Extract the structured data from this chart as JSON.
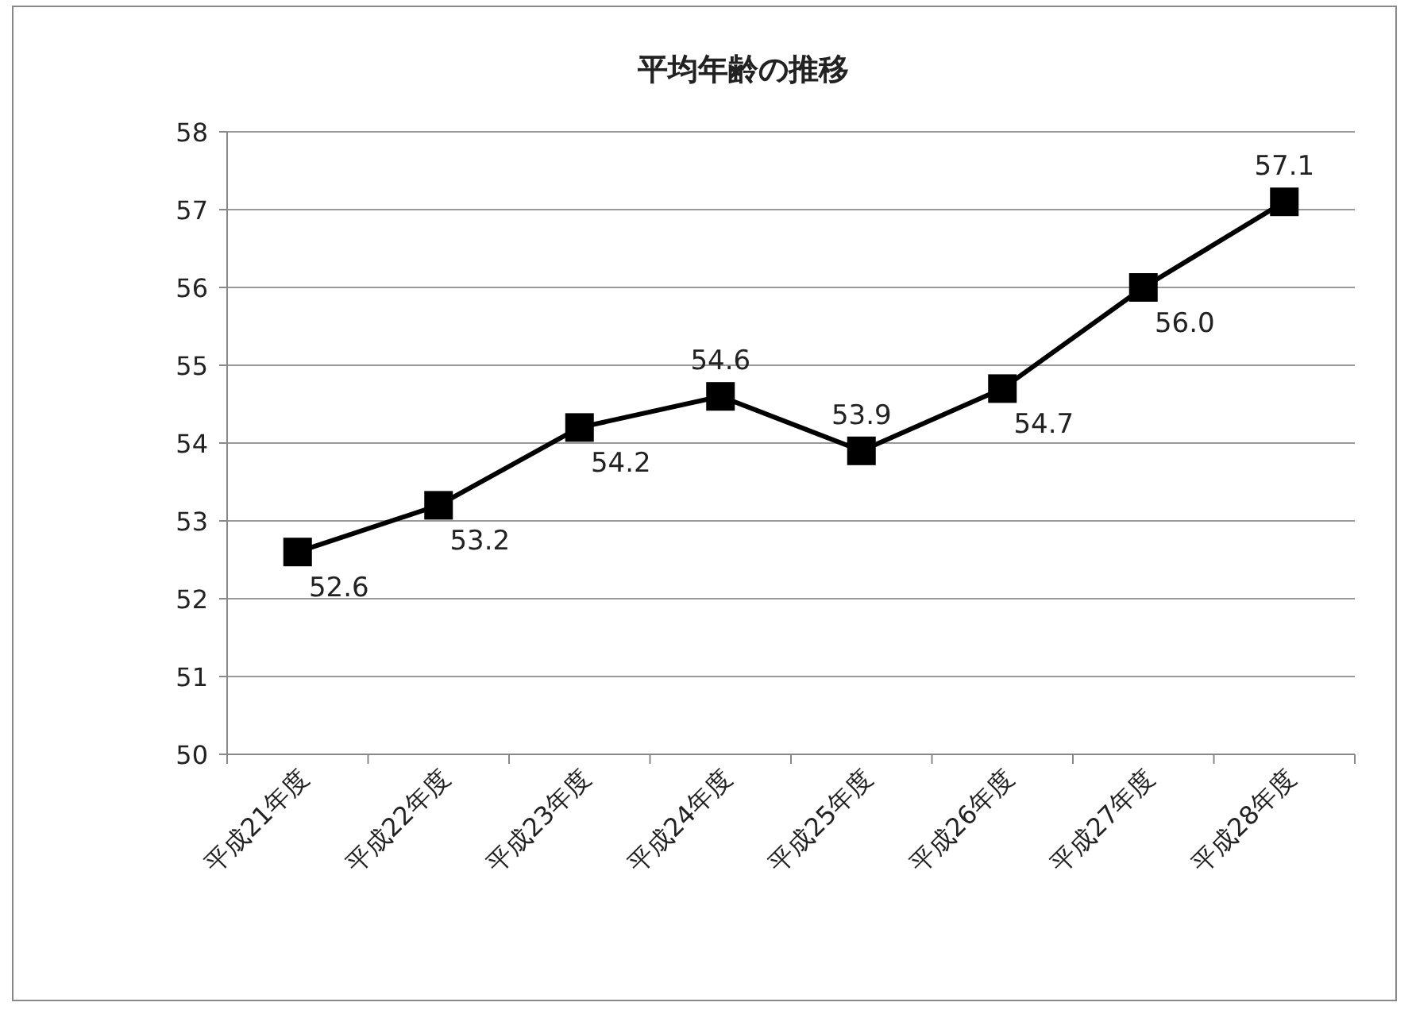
{
  "chart_data": {
    "type": "line",
    "title": "平均年齢の推移",
    "categories": [
      "平成21年度",
      "平成22年度",
      "平成23年度",
      "平成24年度",
      "平成25年度",
      "平成26年度",
      "平成27年度",
      "平成28年度"
    ],
    "series": [
      {
        "color": "#000000",
        "values": [
          52.6,
          53.2,
          54.2,
          54.6,
          53.9,
          54.7,
          56.0,
          57.1
        ],
        "value_labels": [
          "52.6",
          "53.2",
          "54.2",
          "54.6",
          "53.9",
          "54.7",
          "56.0",
          "57.1"
        ]
      }
    ],
    "ylim": [
      50,
      58
    ],
    "yticks": [
      50,
      51,
      52,
      53,
      54,
      55,
      56,
      57,
      58
    ],
    "grid": "y",
    "marker": "square",
    "line_style": "solid"
  }
}
